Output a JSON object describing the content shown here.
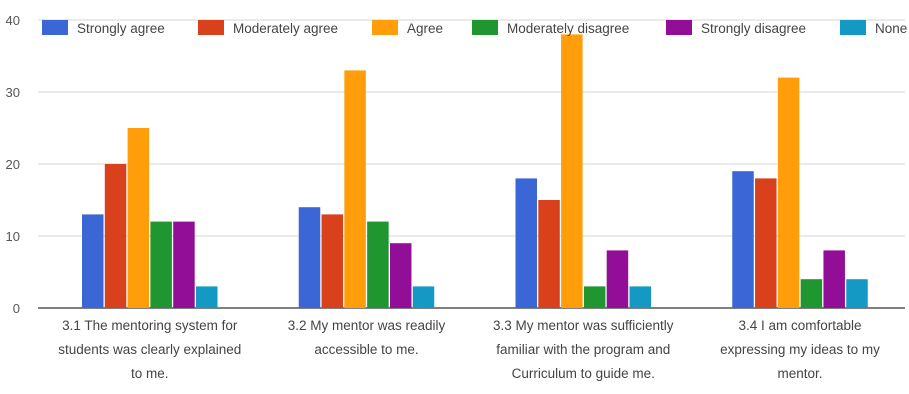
{
  "chart_data": {
    "type": "bar",
    "categories": [
      [
        "3.1 The mentoring system for",
        "students was clearly explained",
        "to me."
      ],
      [
        "3.2 My mentor was readily",
        "accessible to me."
      ],
      [
        "3.3 My mentor was sufficiently",
        "familiar with the program and",
        "Curriculum to guide me."
      ],
      [
        "3.4 I am comfortable",
        "expressing my ideas to my",
        "mentor."
      ]
    ],
    "series": [
      {
        "name": "Strongly agree",
        "color": "#3b66d6",
        "values": [
          13,
          14,
          18,
          19
        ]
      },
      {
        "name": "Moderately agree",
        "color": "#d9401c",
        "values": [
          20,
          13,
          15,
          18
        ]
      },
      {
        "name": "Agree",
        "color": "#ff9d0a",
        "values": [
          25,
          33,
          38,
          32
        ]
      },
      {
        "name": "Moderately disagree",
        "color": "#1f9630",
        "values": [
          12,
          12,
          3,
          4
        ]
      },
      {
        "name": "Strongly disagree",
        "color": "#930e97",
        "values": [
          12,
          9,
          8,
          8
        ]
      },
      {
        "name": "None",
        "color": "#1499c4",
        "values": [
          3,
          3,
          3,
          4
        ]
      }
    ],
    "yticks": [
      0,
      10,
      20,
      30,
      40
    ],
    "ylim": [
      0,
      40
    ],
    "legend_position": "top",
    "grid": true
  }
}
